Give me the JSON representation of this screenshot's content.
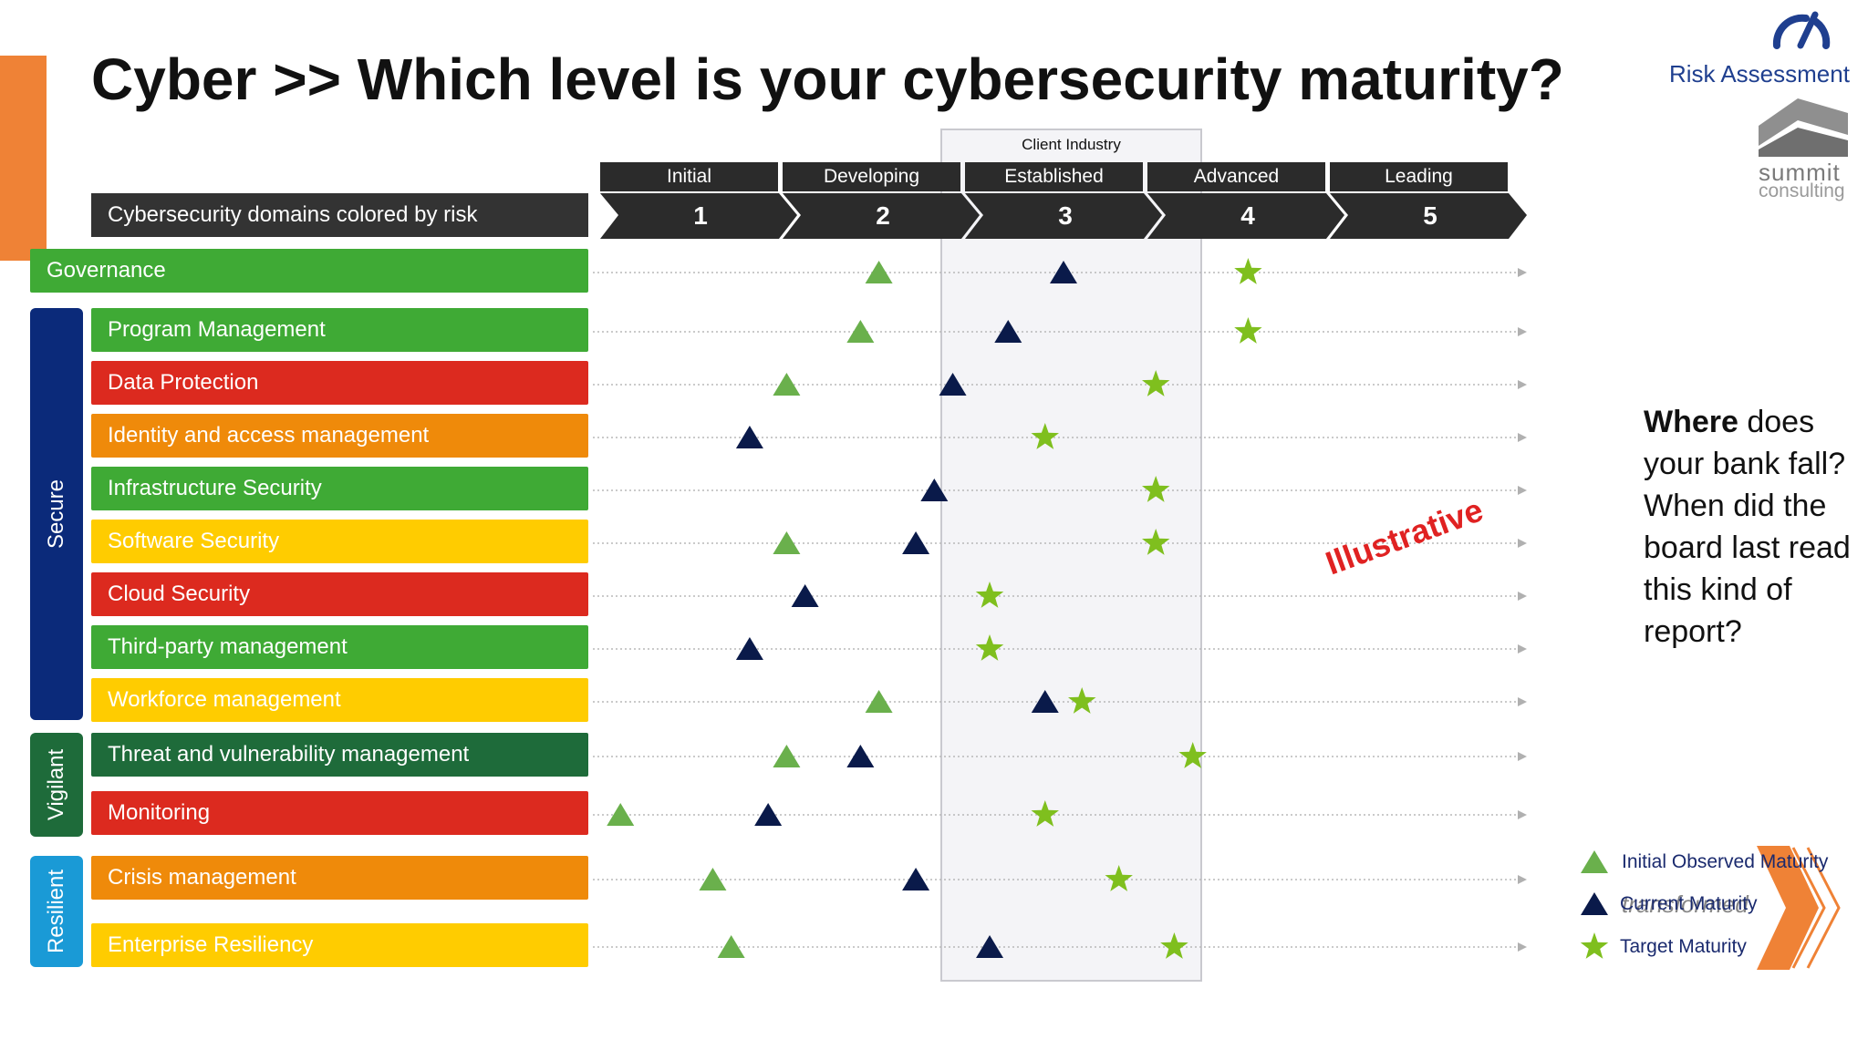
{
  "title": "Cyber >> Which level is your cybersecurity maturity?",
  "header_box": "Cybersecurity domains colored by risk",
  "brand": {
    "risk_assessment": "Risk Assessment",
    "summit": "summit",
    "consulting": "consulting"
  },
  "client_industry_label": "Client Industry",
  "illustrative": "Illustrative",
  "side_question": {
    "bold": "Where",
    "rest": " does your bank fall? When did the board last read this kind of report?"
  },
  "legend_faint": "transformed",
  "groups": [
    {
      "label": "Secure",
      "color": "#0b2a7a"
    },
    {
      "label": "Vigilant",
      "color": "#1e6b3a"
    },
    {
      "label": "Resilient",
      "color": "#1a9ad6"
    }
  ],
  "colors": {
    "green": "#3faa35",
    "red": "#dc2a1f",
    "orange": "#ef8a0a",
    "yellow": "#ffcc00",
    "darkgreen": "#1e6b3a",
    "initial_marker": "#6ab04c",
    "current_marker": "#0a1a4a",
    "target_marker": "#7fbf1e"
  },
  "chart_data": {
    "type": "scatter",
    "levels": [
      {
        "name": "Initial",
        "number": "1"
      },
      {
        "name": "Developing",
        "number": "2"
      },
      {
        "name": "Established",
        "number": "3"
      },
      {
        "name": "Advanced",
        "number": "4"
      },
      {
        "name": "Leading",
        "number": "5"
      }
    ],
    "xlim": [
      0.5,
      5.5
    ],
    "client_industry_range": [
      2.6,
      3.7
    ],
    "series_names": [
      "Initial Observed Maturity",
      "Current Maturity",
      "Target Maturity"
    ],
    "domains": [
      {
        "name": "Governance",
        "risk": "green",
        "initial": 2.0,
        "current": 3.0,
        "target": 4.0
      },
      {
        "name": "Program Management",
        "risk": "green",
        "initial": 1.9,
        "current": 2.7,
        "target": 4.0
      },
      {
        "name": "Data Protection",
        "risk": "red",
        "initial": 1.5,
        "current": 2.4,
        "target": 3.5
      },
      {
        "name": "Identity and access management",
        "risk": "orange",
        "current": 1.3,
        "target": 2.9
      },
      {
        "name": "Infrastructure Security",
        "risk": "green",
        "current": 2.3,
        "target": 3.5
      },
      {
        "name": "Software Security",
        "risk": "yellow",
        "initial": 1.5,
        "current": 2.2,
        "target": 3.5
      },
      {
        "name": "Cloud Security",
        "risk": "red",
        "current": 1.6,
        "target": 2.6
      },
      {
        "name": "Third-party management",
        "risk": "green",
        "current": 1.3,
        "target": 2.6
      },
      {
        "name": "Workforce management",
        "risk": "yellow",
        "initial": 2.0,
        "current": 2.9,
        "target": 3.1
      },
      {
        "name": "Threat and vulnerability management",
        "risk": "darkgreen",
        "initial": 1.5,
        "current": 1.9,
        "target": 3.7
      },
      {
        "name": "Monitoring",
        "risk": "red",
        "initial": 0.6,
        "current": 1.4,
        "target": 2.9
      },
      {
        "name": "Crisis management",
        "risk": "orange",
        "initial": 1.1,
        "current": 2.2,
        "target": 3.3
      },
      {
        "name": "Enterprise Resiliency",
        "risk": "yellow",
        "initial": 1.2,
        "current": 2.6,
        "target": 3.6
      }
    ]
  }
}
